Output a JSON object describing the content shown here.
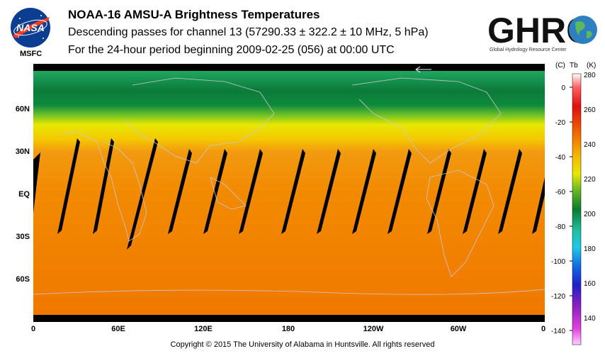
{
  "header": {
    "title": "NOAA-16 AMSU-A Brightness Temperatures",
    "subtitle": "Descending passes for channel 13 (57290.33 ± 322.2 ± 10 MHz, 5 hPa)",
    "period": "For the 24-hour period beginning 2009-02-25 (056) at 00:00 UTC"
  },
  "logos": {
    "nasa_text": "NASA",
    "msfc_label": "MSFC",
    "ghrc_text": "GHRC",
    "ghrc_subtext": "Global Hydrology Resource Center"
  },
  "map": {
    "lat_labels": [
      "60N",
      "30N",
      "EQ",
      "30S",
      "60S"
    ],
    "lon_labels": [
      "0",
      "60E",
      "120E",
      "180",
      "120W",
      "60W",
      "0"
    ],
    "colors": {
      "north": "#0e8a3c",
      "mid": "#f08a00",
      "south": "#f07a00",
      "gap": "#000000"
    }
  },
  "colorbar": {
    "unit_c": "(C)",
    "unit_label": "Tb",
    "unit_k": "(K)",
    "celsius_ticks": [
      "0",
      "-20",
      "-40",
      "-60",
      "-80",
      "-100",
      "-120",
      "-140"
    ],
    "kelvin_ticks": [
      "280",
      "260",
      "240",
      "220",
      "200",
      "180",
      "160",
      "140"
    ]
  },
  "footer": {
    "copyright": "Copyright © 2015 The University of Alabama in Huntsville.  All rights reserved"
  }
}
